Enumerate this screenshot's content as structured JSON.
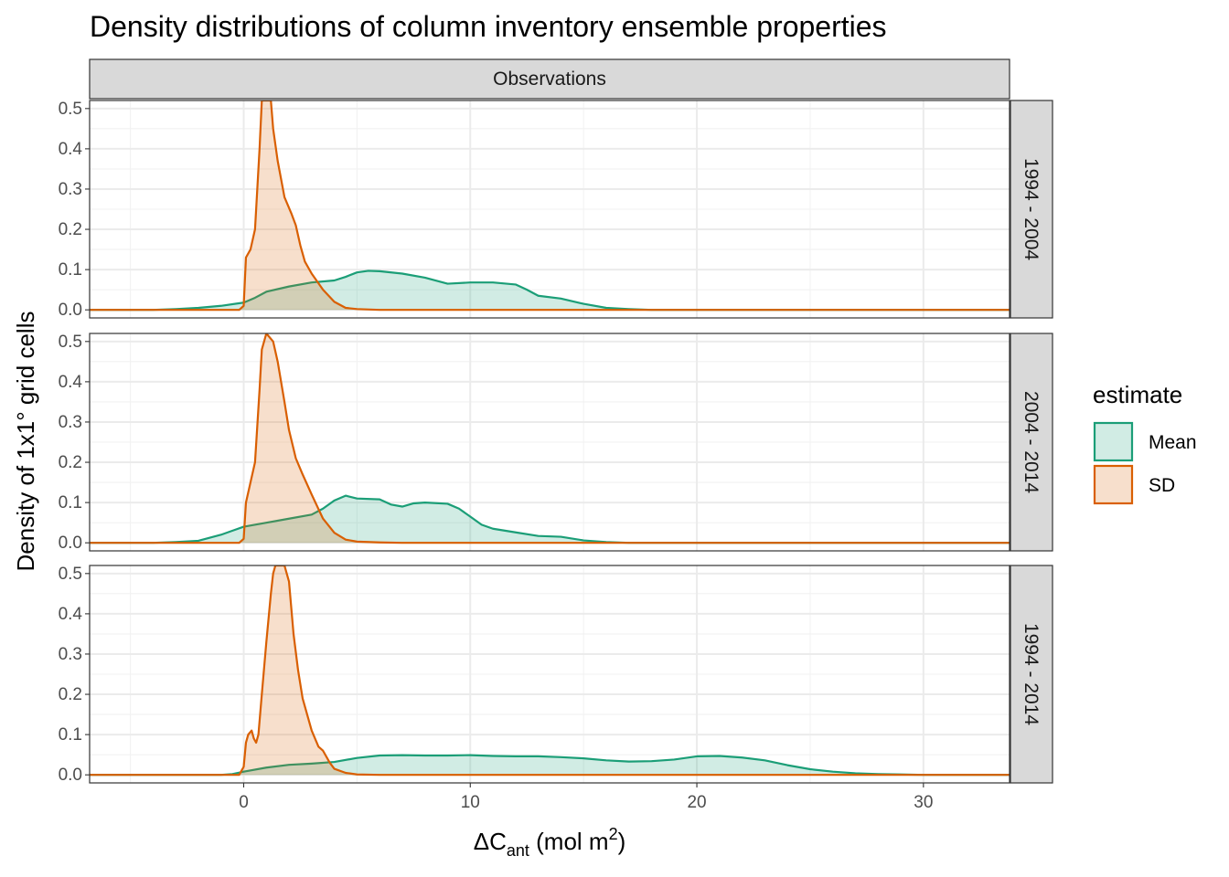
{
  "chart_data": {
    "type": "area",
    "title": "Density distributions of column inventory ensemble properties",
    "xlabel": {
      "base": "ΔC",
      "sub": "ant",
      "rest": " (mol m",
      "sup": "2",
      "close": ")"
    },
    "ylabel": "Density of 1x1° grid cells",
    "column_strip": "Observations",
    "xlim": [
      -6.8,
      33.8
    ],
    "ylim": [
      -0.02,
      0.52
    ],
    "x_ticks": [
      0,
      10,
      20,
      30
    ],
    "y_ticks": [
      0.0,
      0.1,
      0.2,
      0.3,
      0.4,
      0.5
    ],
    "grid": true,
    "legend": {
      "title": "estimate",
      "position": "right",
      "items": [
        {
          "name": "Mean",
          "line": "#1b9e77",
          "fill": "#1b9e77"
        },
        {
          "name": "SD",
          "line": "#d95f02",
          "fill": "#d95f02"
        }
      ]
    },
    "panels": [
      {
        "row_label": "1994 - 2004",
        "series": [
          {
            "name": "Mean",
            "points": [
              [
                -6.8,
                0
              ],
              [
                -4,
                0
              ],
              [
                -3,
                0.002
              ],
              [
                -2,
                0.005
              ],
              [
                -1,
                0.01
              ],
              [
                0,
                0.018
              ],
              [
                0.5,
                0.03
              ],
              [
                1,
                0.045
              ],
              [
                2,
                0.058
              ],
              [
                3,
                0.068
              ],
              [
                4,
                0.073
              ],
              [
                4.5,
                0.082
              ],
              [
                5,
                0.093
              ],
              [
                5.5,
                0.097
              ],
              [
                6,
                0.096
              ],
              [
                7,
                0.09
              ],
              [
                8,
                0.08
              ],
              [
                9,
                0.065
              ],
              [
                10,
                0.068
              ],
              [
                11,
                0.068
              ],
              [
                12,
                0.063
              ],
              [
                12.5,
                0.05
              ],
              [
                13,
                0.035
              ],
              [
                14,
                0.028
              ],
              [
                15,
                0.015
              ],
              [
                16,
                0.005
              ],
              [
                17,
                0.002
              ],
              [
                18,
                0
              ],
              [
                33.8,
                0
              ]
            ]
          },
          {
            "name": "SD",
            "points": [
              [
                -6.8,
                0
              ],
              [
                -0.2,
                0
              ],
              [
                0,
                0.01
              ],
              [
                0.1,
                0.13
              ],
              [
                0.3,
                0.15
              ],
              [
                0.5,
                0.2
              ],
              [
                0.7,
                0.4
              ],
              [
                0.8,
                0.52
              ],
              [
                0.85,
                0.52
              ],
              [
                1.2,
                0.52
              ],
              [
                1.3,
                0.45
              ],
              [
                1.5,
                0.37
              ],
              [
                1.8,
                0.28
              ],
              [
                2.1,
                0.24
              ],
              [
                2.3,
                0.21
              ],
              [
                2.5,
                0.16
              ],
              [
                2.7,
                0.12
              ],
              [
                3,
                0.09
              ],
              [
                3.5,
                0.05
              ],
              [
                4,
                0.02
              ],
              [
                4.5,
                0.005
              ],
              [
                5,
                0.002
              ],
              [
                6,
                0
              ],
              [
                33.8,
                0
              ]
            ]
          }
        ]
      },
      {
        "row_label": "2004 - 2014",
        "series": [
          {
            "name": "Mean",
            "points": [
              [
                -6.8,
                0
              ],
              [
                -4,
                0
              ],
              [
                -3,
                0.002
              ],
              [
                -2,
                0.005
              ],
              [
                -1,
                0.02
              ],
              [
                0,
                0.04
              ],
              [
                1,
                0.05
              ],
              [
                2,
                0.06
              ],
              [
                3,
                0.07
              ],
              [
                3.5,
                0.085
              ],
              [
                4,
                0.105
              ],
              [
                4.5,
                0.117
              ],
              [
                5,
                0.11
              ],
              [
                6,
                0.108
              ],
              [
                6.5,
                0.095
              ],
              [
                7,
                0.09
              ],
              [
                7.5,
                0.098
              ],
              [
                8,
                0.1
              ],
              [
                9,
                0.097
              ],
              [
                9.5,
                0.085
              ],
              [
                10,
                0.065
              ],
              [
                10.5,
                0.045
              ],
              [
                11,
                0.035
              ],
              [
                12,
                0.026
              ],
              [
                13,
                0.017
              ],
              [
                14,
                0.015
              ],
              [
                15,
                0.006
              ],
              [
                16,
                0.002
              ],
              [
                17,
                0
              ],
              [
                33.8,
                0
              ]
            ]
          },
          {
            "name": "SD",
            "points": [
              [
                -6.8,
                0
              ],
              [
                -0.2,
                0
              ],
              [
                0,
                0.01
              ],
              [
                0.1,
                0.1
              ],
              [
                0.3,
                0.15
              ],
              [
                0.5,
                0.2
              ],
              [
                0.7,
                0.38
              ],
              [
                0.8,
                0.48
              ],
              [
                1,
                0.52
              ],
              [
                1.3,
                0.5
              ],
              [
                1.5,
                0.45
              ],
              [
                1.8,
                0.35
              ],
              [
                2,
                0.28
              ],
              [
                2.3,
                0.21
              ],
              [
                2.6,
                0.17
              ],
              [
                3,
                0.12
              ],
              [
                3.5,
                0.06
              ],
              [
                4,
                0.025
              ],
              [
                4.5,
                0.008
              ],
              [
                5,
                0.003
              ],
              [
                6,
                0.001
              ],
              [
                7,
                0
              ],
              [
                33.8,
                0
              ]
            ]
          }
        ]
      },
      {
        "row_label": "1994 - 2014",
        "series": [
          {
            "name": "Mean",
            "points": [
              [
                -6.8,
                0
              ],
              [
                -1,
                0
              ],
              [
                -0.5,
                0.002
              ],
              [
                0,
                0.008
              ],
              [
                1,
                0.018
              ],
              [
                2,
                0.025
              ],
              [
                3,
                0.028
              ],
              [
                4,
                0.032
              ],
              [
                5,
                0.042
              ],
              [
                6,
                0.048
              ],
              [
                7,
                0.049
              ],
              [
                8,
                0.048
              ],
              [
                9,
                0.048
              ],
              [
                10,
                0.049
              ],
              [
                11,
                0.047
              ],
              [
                12,
                0.046
              ],
              [
                13,
                0.046
              ],
              [
                14,
                0.044
              ],
              [
                15,
                0.041
              ],
              [
                16,
                0.036
              ],
              [
                17,
                0.033
              ],
              [
                18,
                0.034
              ],
              [
                19,
                0.038
              ],
              [
                20,
                0.046
              ],
              [
                21,
                0.047
              ],
              [
                22,
                0.043
              ],
              [
                23,
                0.036
              ],
              [
                24,
                0.024
              ],
              [
                25,
                0.014
              ],
              [
                26,
                0.008
              ],
              [
                27,
                0.004
              ],
              [
                28,
                0.002
              ],
              [
                29,
                0.001
              ],
              [
                30,
                0
              ],
              [
                33.8,
                0
              ]
            ]
          },
          {
            "name": "SD",
            "points": [
              [
                -6.8,
                0
              ],
              [
                -0.2,
                0
              ],
              [
                0,
                0.02
              ],
              [
                0.1,
                0.08
              ],
              [
                0.2,
                0.1
              ],
              [
                0.35,
                0.11
              ],
              [
                0.45,
                0.09
              ],
              [
                0.55,
                0.08
              ],
              [
                0.65,
                0.1
              ],
              [
                0.8,
                0.2
              ],
              [
                1,
                0.33
              ],
              [
                1.2,
                0.45
              ],
              [
                1.3,
                0.5
              ],
              [
                1.4,
                0.52
              ],
              [
                1.8,
                0.52
              ],
              [
                2,
                0.48
              ],
              [
                2.2,
                0.35
              ],
              [
                2.4,
                0.26
              ],
              [
                2.6,
                0.19
              ],
              [
                3,
                0.11
              ],
              [
                3.3,
                0.07
              ],
              [
                3.5,
                0.06
              ],
              [
                3.8,
                0.03
              ],
              [
                4,
                0.015
              ],
              [
                4.5,
                0.005
              ],
              [
                5,
                0.001
              ],
              [
                6,
                0
              ],
              [
                33.8,
                0
              ]
            ]
          }
        ]
      }
    ]
  }
}
